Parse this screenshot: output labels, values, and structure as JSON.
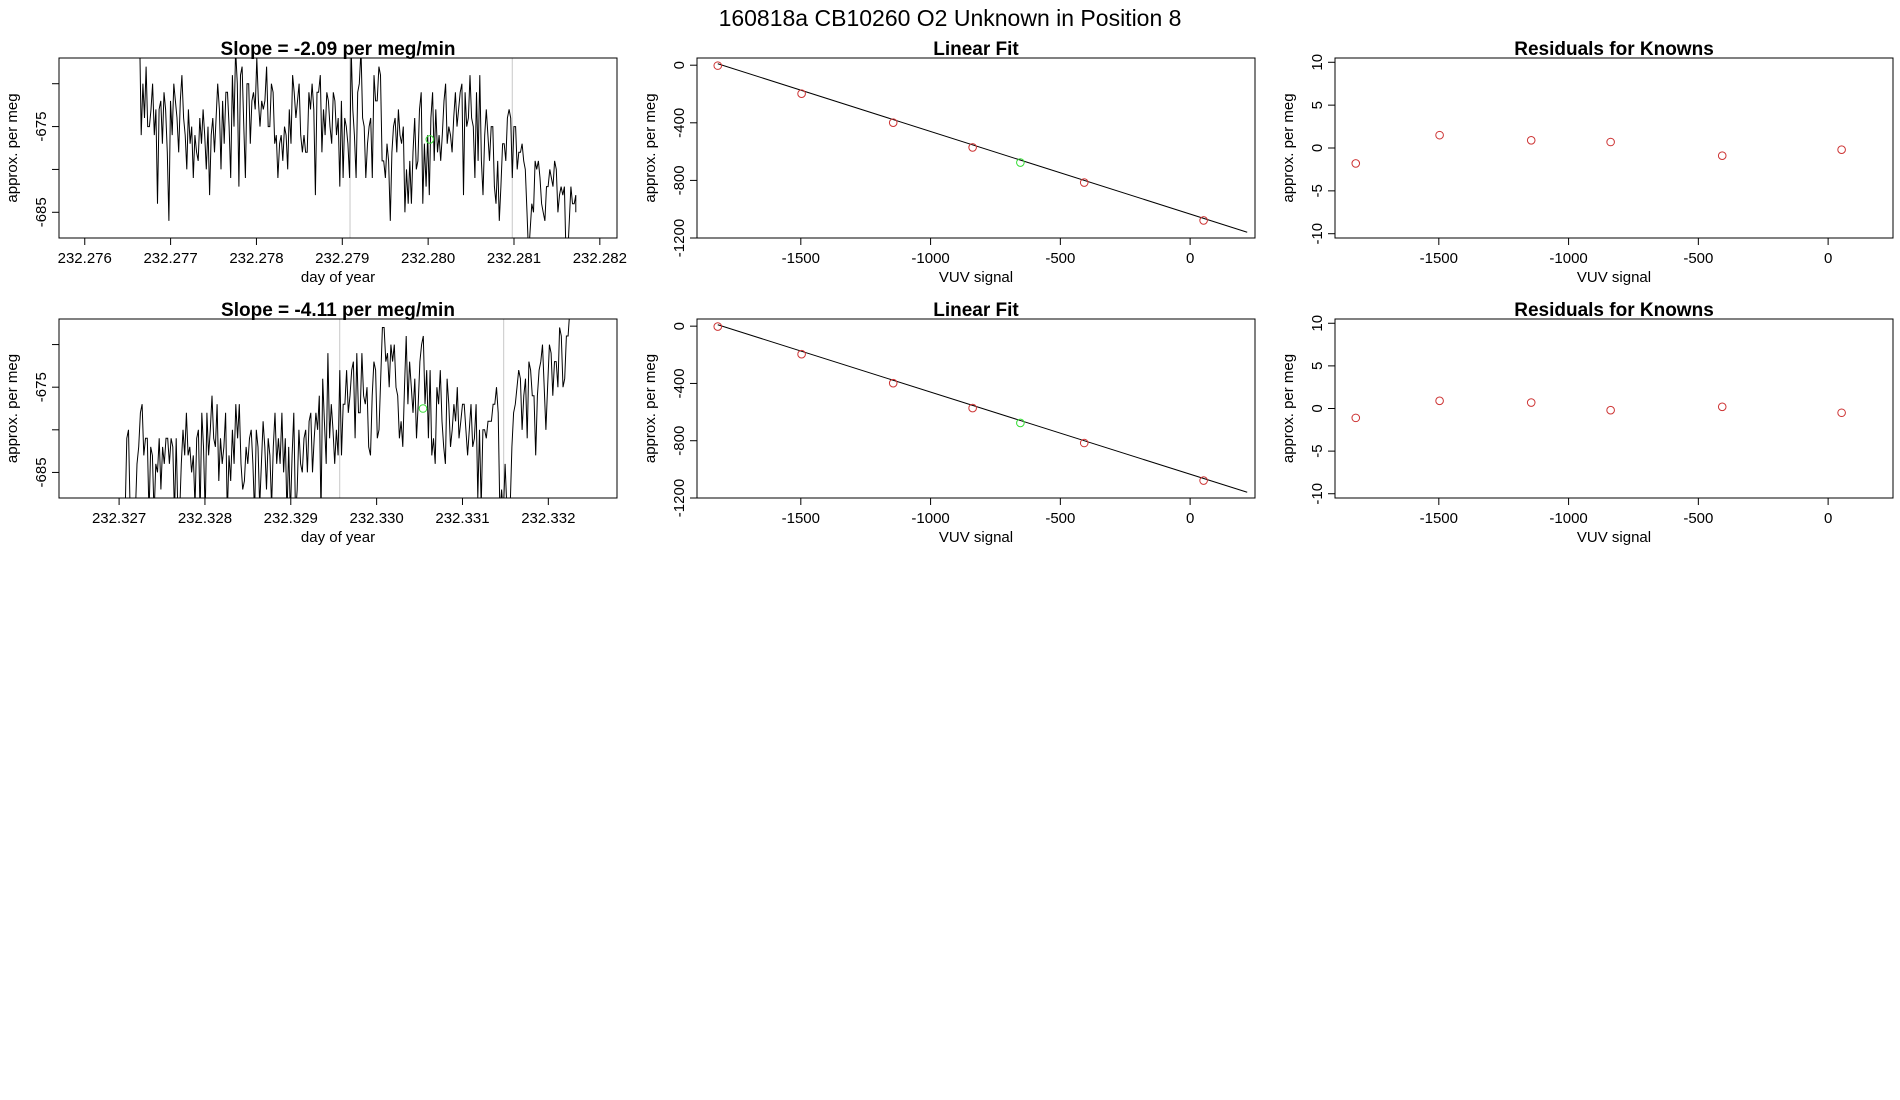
{
  "title": "160818a      CB10260    O2 Unknown in Position  8",
  "colors": {
    "known": "#cd3333",
    "unknown": "#33dd33",
    "line": "#000000",
    "marker": "#c8c8c8"
  },
  "chart_data": [
    {
      "type": "line",
      "title": "Slope =  -2.09  per meg/min",
      "xlabel": "day of year",
      "ylabel": "approx. per meg",
      "xlim": [
        232.2757,
        232.2822
      ],
      "ylim": [
        -688,
        -667
      ],
      "xticks": [
        232.276,
        232.277,
        232.278,
        232.279,
        232.28,
        232.281,
        232.282
      ],
      "xtick_labels": [
        "232.276",
        "232.277",
        "232.278",
        "232.279",
        "232.280",
        "232.281",
        "232.282"
      ],
      "yticks": [
        -685,
        -680,
        -675,
        -670
      ],
      "ytick_labels": [
        "-685",
        "",
        "-675",
        ""
      ],
      "vlines": [
        232.27909,
        232.28098
      ],
      "y_start": -665,
      "y_end": -685,
      "series": [
        {
          "x_start": 232.27662,
          "x_end": 232.28172,
          "values": [
            -665,
            -664,
            -676,
            -670,
            -674,
            -668,
            -675,
            -675,
            -673,
            -670,
            -676,
            -673,
            -684,
            -673,
            -672,
            -677,
            -671,
            -673,
            -678,
            -686,
            -672,
            -676,
            -670,
            -672,
            -674,
            -678,
            -672,
            -669,
            -674,
            -676,
            -680,
            -673,
            -677,
            -675,
            -681,
            -676,
            -678,
            -679,
            -674,
            -677,
            -673,
            -676,
            -680,
            -675,
            -683,
            -676,
            -674,
            -678,
            -674,
            -670,
            -673,
            -680,
            -672,
            -677,
            -671,
            -671,
            -675,
            -681,
            -669,
            -675,
            -666,
            -670,
            -682,
            -669,
            -668,
            -675,
            -681,
            -670,
            -670,
            -677,
            -672,
            -671,
            -673,
            -667,
            -672,
            -675,
            -672,
            -673,
            -672,
            -668,
            -675,
            -675,
            -670,
            -671,
            -677,
            -676,
            -681,
            -677,
            -676,
            -679,
            -675,
            -676,
            -680,
            -673,
            -677,
            -669,
            -671,
            -674,
            -672,
            -670,
            -676,
            -678,
            -676,
            -678,
            -678,
            -671,
            -673,
            -670,
            -673,
            -683,
            -671,
            -671,
            -669,
            -678,
            -673,
            -676,
            -671,
            -672,
            -675,
            -677,
            -671,
            -672,
            -676,
            -674,
            -682,
            -672,
            -681,
            -674,
            -675,
            -677,
            -681,
            -666,
            -673,
            -676,
            -681,
            -671,
            -670,
            -666,
            -674,
            -675,
            -681,
            -677,
            -675,
            -674,
            -681,
            -669,
            -672,
            -672,
            -668,
            -669,
            -679,
            -679,
            -681,
            -677,
            -679,
            -686,
            -678,
            -675,
            -674,
            -678,
            -673,
            -676,
            -677,
            -675,
            -685,
            -680,
            -684,
            -679,
            -684,
            -678,
            -674,
            -680,
            -679,
            -673,
            -671,
            -684,
            -677,
            -682,
            -676,
            -683,
            -674,
            -671,
            -679,
            -673,
            -678,
            -676,
            -679,
            -676,
            -672,
            -670,
            -677,
            -675,
            -676,
            -678,
            -674,
            -671,
            -675,
            -673,
            -671,
            -670,
            -683,
            -671,
            -675,
            -674,
            -669,
            -674,
            -675,
            -681,
            -671,
            -679,
            -669,
            -679,
            -683,
            -676,
            -673,
            -676,
            -679,
            -675,
            -675,
            -682,
            -684,
            -679,
            -686,
            -682,
            -677,
            -677,
            -679,
            -674,
            -673,
            -674,
            -681,
            -675,
            -675,
            -680,
            -678,
            -678,
            -677,
            -679,
            -680,
            -685,
            -690,
            -687,
            -684,
            -685,
            -679,
            -680,
            -679,
            -681,
            -684,
            -685,
            -686,
            -682,
            -682,
            -680,
            -681,
            -682,
            -679,
            -680,
            -685,
            -683,
            -682,
            -683,
            -682,
            -690,
            -690,
            -686,
            -682,
            -684,
            -684,
            -683
          ]
        }
      ],
      "highlight_point": {
        "x": 232.28002,
        "y": -676.5
      }
    },
    {
      "type": "scatter",
      "title": "Linear Fit",
      "xlabel": "VUV signal",
      "ylabel": "approx. per meg",
      "xlim": [
        -1900,
        250
      ],
      "ylim": [
        -1200,
        50
      ],
      "xticks": [
        -1500,
        -1000,
        -500,
        0
      ],
      "xtick_labels": [
        "-1500",
        "-1000",
        "-500",
        "0"
      ],
      "yticks": [
        0,
        -400,
        -800,
        -1200
      ],
      "ytick_labels": [
        "0",
        "-400",
        "-800",
        "-1200"
      ],
      "fit_line": {
        "x": [
          -1820,
          220
        ],
        "y": [
          10,
          -1160
        ]
      },
      "points": [
        {
          "x": -1820,
          "y": -3,
          "role": "known"
        },
        {
          "x": -1497,
          "y": -198,
          "role": "known"
        },
        {
          "x": -1144,
          "y": -399,
          "role": "known"
        },
        {
          "x": -838,
          "y": -571,
          "role": "known"
        },
        {
          "x": -654,
          "y": -676,
          "role": "unknown"
        },
        {
          "x": -408,
          "y": -815,
          "role": "known"
        },
        {
          "x": 52,
          "y": -1078,
          "role": "known"
        }
      ]
    },
    {
      "type": "scatter",
      "title": "Residuals for Knowns",
      "xlabel": "VUV signal",
      "ylabel": "approx. per meg",
      "xlim": [
        -1900,
        250
      ],
      "ylim": [
        -10.5,
        10.5
      ],
      "xticks": [
        -1500,
        -1000,
        -500,
        0
      ],
      "xtick_labels": [
        "-1500",
        "-1000",
        "-500",
        "0"
      ],
      "yticks": [
        10,
        5,
        0,
        -5,
        -10
      ],
      "ytick_labels": [
        "10",
        "5",
        "0",
        "-5",
        "-10"
      ],
      "points": [
        {
          "x": -1820,
          "y": -1.8,
          "role": "known"
        },
        {
          "x": -1497,
          "y": 1.5,
          "role": "known"
        },
        {
          "x": -1144,
          "y": 0.9,
          "role": "known"
        },
        {
          "x": -838,
          "y": 0.7,
          "role": "known"
        },
        {
          "x": -408,
          "y": -0.9,
          "role": "known"
        },
        {
          "x": 52,
          "y": -0.2,
          "role": "known"
        }
      ]
    },
    {
      "type": "line",
      "title": "Slope =  -4.11  per meg/min",
      "xlabel": "day of year",
      "ylabel": "approx. per meg",
      "xlim": [
        232.3263,
        232.3328
      ],
      "ylim": [
        -688,
        -667
      ],
      "xticks": [
        232.327,
        232.328,
        232.329,
        232.33,
        232.331,
        232.332
      ],
      "xtick_labels": [
        "232.327",
        "232.328",
        "232.329",
        "232.330",
        "232.331",
        "232.332"
      ],
      "yticks": [
        -685,
        -680,
        -675,
        -670
      ],
      "ytick_labels": [
        "-685",
        "",
        "-675",
        ""
      ],
      "vlines": [
        232.32957,
        232.33148
      ],
      "y_start": -690,
      "y_end": -665,
      "series": [
        {
          "x_start": 232.32707,
          "x_end": 232.33227,
          "values": [
            -690,
            -681,
            -680,
            -690,
            -690,
            -689,
            -690,
            -684,
            -682,
            -678,
            -677,
            -683,
            -681,
            -681,
            -690,
            -682,
            -683,
            -690,
            -684,
            -685,
            -681,
            -687,
            -682,
            -684,
            -681,
            -681,
            -684,
            -681,
            -682,
            -690,
            -681,
            -690,
            -690,
            -684,
            -680,
            -683,
            -678,
            -683,
            -682,
            -685,
            -683,
            -689,
            -681,
            -680,
            -690,
            -678,
            -682,
            -690,
            -678,
            -683,
            -680,
            -676,
            -681,
            -682,
            -677,
            -686,
            -681,
            -684,
            -682,
            -678,
            -690,
            -683,
            -686,
            -680,
            -684,
            -677,
            -681,
            -677,
            -684,
            -687,
            -686,
            -682,
            -684,
            -681,
            -680,
            -684,
            -690,
            -680,
            -682,
            -689,
            -684,
            -679,
            -682,
            -687,
            -681,
            -683,
            -689,
            -682,
            -678,
            -684,
            -681,
            -684,
            -678,
            -685,
            -681,
            -690,
            -682,
            -690,
            -683,
            -678,
            -690,
            -687,
            -680,
            -684,
            -685,
            -681,
            -680,
            -685,
            -679,
            -678,
            -685,
            -681,
            -678,
            -680,
            -676,
            -690,
            -674,
            -679,
            -684,
            -671,
            -681,
            -677,
            -680,
            -684,
            -680,
            -683,
            -673,
            -683,
            -677,
            -677,
            -673,
            -678,
            -676,
            -673,
            -672,
            -681,
            -671,
            -678,
            -678,
            -671,
            -676,
            -677,
            -675,
            -682,
            -683,
            -676,
            -672,
            -673,
            -681,
            -680,
            -674,
            -668,
            -668,
            -672,
            -671,
            -675,
            -670,
            -672,
            -670,
            -675,
            -676,
            -681,
            -679,
            -682,
            -675,
            -669,
            -677,
            -672,
            -675,
            -678,
            -674,
            -681,
            -677,
            -672,
            -670,
            -669,
            -677,
            -673,
            -681,
            -673,
            -683,
            -681,
            -684,
            -675,
            -677,
            -673,
            -679,
            -682,
            -684,
            -674,
            -677,
            -682,
            -680,
            -677,
            -679,
            -675,
            -681,
            -679,
            -677,
            -677,
            -680,
            -683,
            -680,
            -677,
            -682,
            -681,
            -677,
            -688,
            -680,
            -689,
            -680,
            -680,
            -681,
            -679,
            -679,
            -679,
            -677,
            -677,
            -675,
            -678,
            -690,
            -687,
            -690,
            -684,
            -689,
            -690,
            -689,
            -682,
            -678,
            -677,
            -675,
            -673,
            -674,
            -680,
            -676,
            -674,
            -681,
            -672,
            -673,
            -676,
            -676,
            -683,
            -676,
            -673,
            -672,
            -670,
            -675,
            -680,
            -675,
            -670,
            -671,
            -676,
            -672,
            -672,
            -675,
            -668,
            -669,
            -675,
            -674,
            -669,
            -669,
            -666,
            -665
          ]
        }
      ],
      "highlight_point": {
        "x": 232.33054,
        "y": -677.5
      }
    },
    {
      "type": "scatter",
      "title": "Linear Fit",
      "xlabel": "VUV signal",
      "ylabel": "approx. per meg",
      "xlim": [
        -1900,
        250
      ],
      "ylim": [
        -1200,
        50
      ],
      "xticks": [
        -1500,
        -1000,
        -500,
        0
      ],
      "xtick_labels": [
        "-1500",
        "-1000",
        "-500",
        "0"
      ],
      "yticks": [
        0,
        -400,
        -800,
        -1200
      ],
      "ytick_labels": [
        "0",
        "-400",
        "-800",
        "-1200"
      ],
      "fit_line": {
        "x": [
          -1820,
          220
        ],
        "y": [
          10,
          -1160
        ]
      },
      "points": [
        {
          "x": -1820,
          "y": -3,
          "role": "known"
        },
        {
          "x": -1497,
          "y": -196,
          "role": "known"
        },
        {
          "x": -1144,
          "y": -398,
          "role": "known"
        },
        {
          "x": -838,
          "y": -572,
          "role": "known"
        },
        {
          "x": -654,
          "y": -676,
          "role": "unknown"
        },
        {
          "x": -408,
          "y": -816,
          "role": "known"
        },
        {
          "x": 52,
          "y": -1078,
          "role": "known"
        }
      ]
    },
    {
      "type": "scatter",
      "title": "Residuals for Knowns",
      "xlabel": "VUV signal",
      "ylabel": "approx. per meg",
      "xlim": [
        -1900,
        250
      ],
      "ylim": [
        -10.5,
        10.5
      ],
      "xticks": [
        -1500,
        -1000,
        -500,
        0
      ],
      "xtick_labels": [
        "-1500",
        "-1000",
        "-500",
        "0"
      ],
      "yticks": [
        10,
        5,
        0,
        -5,
        -10
      ],
      "ytick_labels": [
        "10",
        "5",
        "0",
        "-5",
        "-10"
      ],
      "points": [
        {
          "x": -1820,
          "y": -1.1,
          "role": "known"
        },
        {
          "x": -1497,
          "y": 0.9,
          "role": "known"
        },
        {
          "x": -1144,
          "y": 0.7,
          "role": "known"
        },
        {
          "x": -838,
          "y": -0.2,
          "role": "known"
        },
        {
          "x": -408,
          "y": 0.2,
          "role": "known"
        },
        {
          "x": 52,
          "y": -0.5,
          "role": "known"
        }
      ]
    }
  ]
}
